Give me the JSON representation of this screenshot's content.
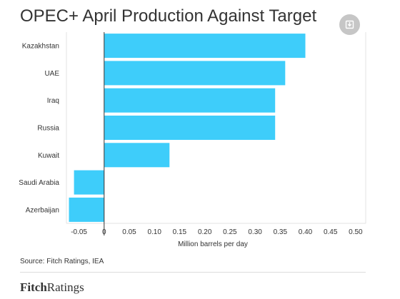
{
  "header": {
    "title": "OPEC+ April Production Against Target",
    "download_icon": "download-icon"
  },
  "chart_data": {
    "type": "bar",
    "orientation": "horizontal",
    "title": "OPEC+ April Production Against Target",
    "xlabel": "Million barrels per day",
    "ylabel": "",
    "categories": [
      "Kazakhstan",
      "UAE",
      "Iraq",
      "Russia",
      "Kuwait",
      "Saudi Arabia",
      "Azerbaijan"
    ],
    "values": [
      0.4,
      0.36,
      0.34,
      0.34,
      0.13,
      -0.06,
      -0.07
    ],
    "xlim": [
      -0.075,
      0.52
    ],
    "xticks": [
      -0.05,
      0,
      0.05,
      0.1,
      0.15,
      0.2,
      0.25,
      0.3,
      0.35,
      0.4,
      0.45,
      0.5
    ],
    "xtick_labels": [
      "-0.05",
      "0",
      "0.05",
      "0.10",
      "0.15",
      "0.20",
      "0.25",
      "0.30",
      "0.35",
      "0.40",
      "0.45",
      "0.50"
    ],
    "bar_color": "#3ecdfa",
    "grid": false,
    "legend": "none"
  },
  "footer": {
    "source": "Source: Fitch Ratings, IEA",
    "brand_part1": "Fitch",
    "brand_part2": "Ratings"
  }
}
